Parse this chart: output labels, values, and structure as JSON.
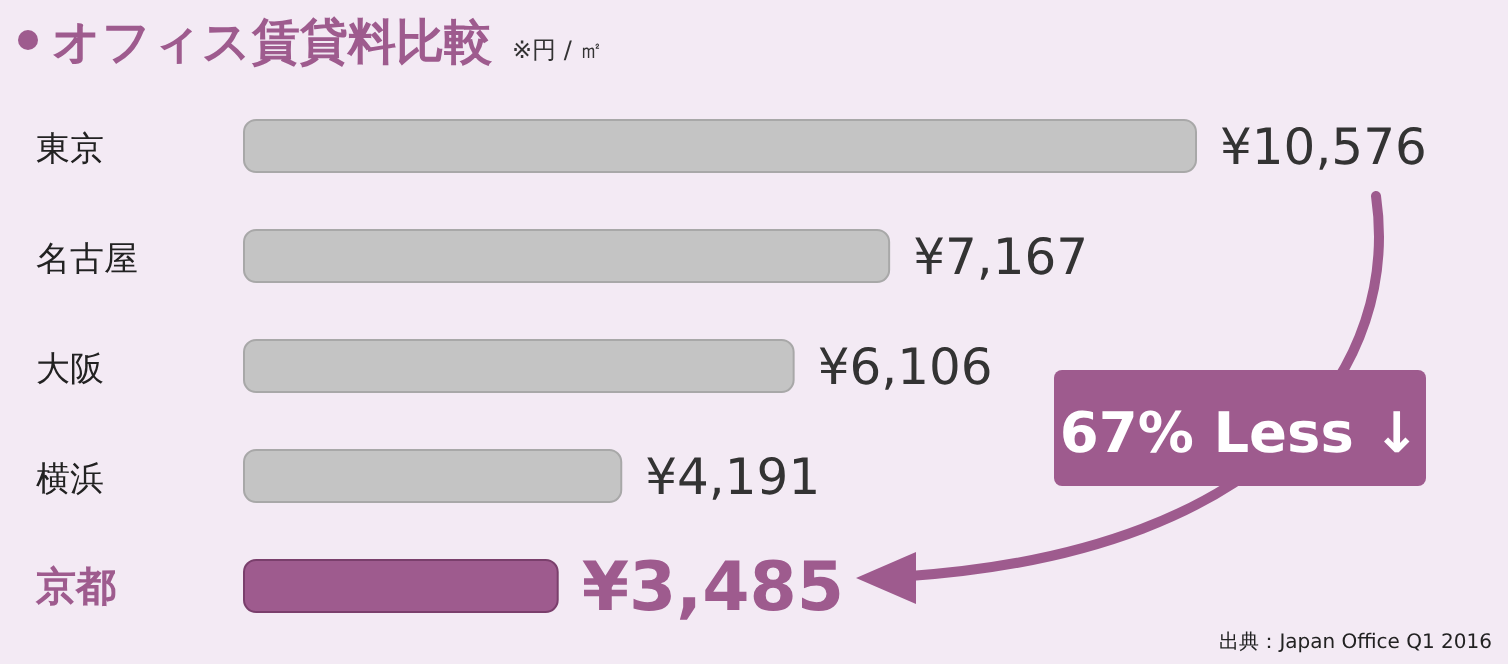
{
  "chart_data": {
    "type": "bar",
    "orientation": "horizontal",
    "title": "オフィス賃貸料比較",
    "subtitle": "※円 / ㎡",
    "categories": [
      "東京",
      "名古屋",
      "大阪",
      "横浜",
      "京都"
    ],
    "values": [
      10576,
      7167,
      6106,
      4191,
      3485
    ],
    "colors": [
      "#c4c4c4",
      "#c4c4c4",
      "#c4c4c4",
      "#c4c4c4",
      "#9e5b8e"
    ],
    "value_labels": [
      "¥10,576",
      "¥7,167",
      "¥6,106",
      "¥4,191",
      "¥3,485"
    ],
    "annotations": [
      "67% Less ↓",
      "出典：Japan Office Q1 2016"
    ]
  }
}
